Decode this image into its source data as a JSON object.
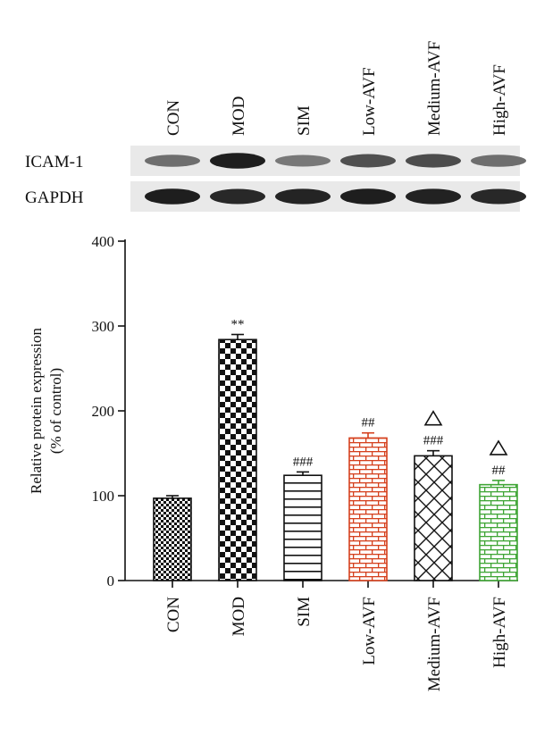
{
  "blot": {
    "lanes": [
      "CON",
      "MOD",
      "SIM",
      "Low-AVF",
      "Medium-AVF",
      "High-AVF"
    ],
    "rows": [
      {
        "label": "ICAM-1",
        "intensity": [
          0.55,
          0.95,
          0.5,
          0.7,
          0.72,
          0.55
        ]
      },
      {
        "label": "GAPDH",
        "intensity": [
          0.95,
          0.9,
          0.92,
          0.95,
          0.93,
          0.9
        ]
      }
    ]
  },
  "chart_data": {
    "type": "bar",
    "categories": [
      "CON",
      "MOD",
      "SIM",
      "Low-AVF",
      "Medium-AVF",
      "High-AVF"
    ],
    "values": [
      97,
      284,
      124,
      168,
      147,
      113
    ],
    "errors": [
      3,
      6,
      4,
      6,
      6,
      5
    ],
    "ylabel_line1": "Relative protein expression",
    "ylabel_line2": "(% of control)",
    "ylim": [
      0,
      400
    ],
    "yticks": [
      0,
      100,
      200,
      300,
      400
    ],
    "significance": [
      "",
      "**",
      "###",
      "##",
      "###",
      "##"
    ],
    "triangle_marker": [
      false,
      false,
      false,
      false,
      true,
      true
    ],
    "bar_patterns": [
      "checker-small",
      "checker-large",
      "horizontal-lines",
      "brick",
      "diagonal-cross",
      "brick"
    ],
    "bar_colors": [
      "#111111",
      "#111111",
      "#111111",
      "#d5401d",
      "#111111",
      "#3fa535"
    ]
  }
}
